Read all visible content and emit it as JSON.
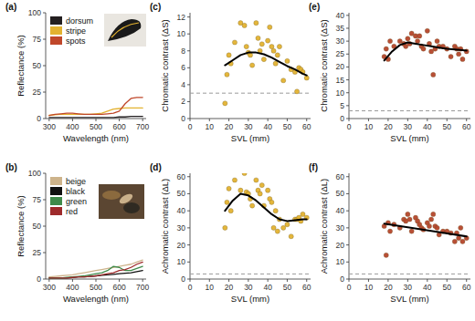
{
  "chart_data": [
    {
      "type": "line",
      "title": "(a)",
      "x_label": "Wavelength (nm)",
      "y_label": "Reflectance (%)",
      "x": [
        300,
        325,
        350,
        375,
        400,
        425,
        450,
        475,
        500,
        525,
        550,
        575,
        600,
        625,
        650,
        675,
        700
      ],
      "xlim": [
        285,
        715
      ],
      "xticks": [
        300,
        400,
        500,
        600,
        700
      ],
      "ylim": [
        0,
        100
      ],
      "yticks": [
        0,
        25,
        50,
        75,
        100
      ],
      "legend": "top-left",
      "series": [
        {
          "name": "dorsum",
          "color": "#231f20",
          "values": [
            1,
            1,
            1,
            1,
            1,
            1,
            1,
            1,
            1,
            1,
            1,
            1,
            1.5,
            1.5,
            2,
            2,
            2
          ]
        },
        {
          "name": "stripe",
          "color": "#e3b230",
          "values": [
            3,
            3.5,
            4,
            4,
            4,
            4,
            4,
            4,
            4.5,
            5,
            7,
            9,
            9.5,
            10,
            10,
            10,
            10
          ]
        },
        {
          "name": "spots",
          "color": "#c0472a",
          "values": [
            3,
            4,
            4.5,
            5,
            5,
            4.5,
            4,
            4,
            4,
            4,
            4.5,
            5,
            7,
            14,
            19,
            20,
            20
          ]
        }
      ]
    },
    {
      "type": "line",
      "title": "(b)",
      "x_label": "Wavelength (nm)",
      "y_label": "Reflectance (%)",
      "x": [
        300,
        325,
        350,
        375,
        400,
        425,
        450,
        475,
        500,
        525,
        550,
        575,
        600,
        625,
        650,
        675,
        700
      ],
      "xlim": [
        285,
        715
      ],
      "xticks": [
        300,
        400,
        500,
        600,
        700
      ],
      "ylim": [
        0,
        100
      ],
      "yticks": [
        0,
        25,
        50,
        75,
        100
      ],
      "legend": "top-left",
      "series": [
        {
          "name": "beige",
          "color": "#cdb38b",
          "values": [
            2,
            2.5,
            3,
            3.5,
            4,
            5,
            6,
            7,
            8,
            9,
            10,
            11,
            12,
            13,
            14,
            16,
            18
          ]
        },
        {
          "name": "black",
          "color": "#111111",
          "values": [
            1,
            1,
            1,
            1,
            1.5,
            2,
            2,
            2.5,
            3,
            3.5,
            4,
            4.5,
            5,
            5.5,
            6,
            7,
            8
          ]
        },
        {
          "name": "green",
          "color": "#3f8a4a",
          "values": [
            1,
            1,
            1,
            1.5,
            2,
            2.5,
            3,
            4,
            5,
            6,
            8,
            12,
            11,
            8,
            8,
            10,
            12
          ]
        },
        {
          "name": "red",
          "color": "#9e2a2b",
          "values": [
            1,
            1,
            1,
            1,
            1.5,
            2,
            2,
            2.5,
            3,
            4,
            5,
            6,
            8,
            9,
            11,
            14,
            16
          ]
        }
      ]
    },
    {
      "type": "scatter",
      "title": "(c)",
      "x_label": "SVL (mm)",
      "y_label": "Chromatic contrast (ΔS)",
      "xlim": [
        0,
        62
      ],
      "xticks": [
        0,
        10,
        20,
        30,
        40,
        50,
        60
      ],
      "ylim": [
        0,
        12.5
      ],
      "yticks": [
        0,
        2,
        4,
        6,
        8,
        10,
        12
      ],
      "threshold": 3,
      "series": [
        {
          "type": "scatter",
          "color": "#e3b230",
          "x": [
            18,
            19,
            20,
            21,
            23,
            26,
            28,
            29,
            30,
            31,
            32,
            34,
            35,
            36,
            37,
            38,
            40,
            41,
            42,
            43,
            44,
            45,
            46,
            48,
            50,
            52,
            54,
            55,
            56,
            57,
            58,
            60
          ],
          "values": [
            1.8,
            5.2,
            7.5,
            6.5,
            9,
            11.3,
            11,
            8.5,
            7.8,
            7.5,
            6.3,
            11.3,
            9.5,
            8,
            8.8,
            7,
            9.2,
            10.8,
            8.5,
            8,
            6.5,
            7.5,
            8.5,
            4.5,
            6.8,
            5.8,
            5.5,
            3.2,
            6,
            5.8,
            5.5,
            4.8
          ]
        },
        {
          "type": "line",
          "color": "#000000",
          "x": [
            18,
            22,
            26,
            30,
            34,
            38,
            42,
            46,
            50,
            54,
            58,
            60
          ],
          "values": [
            6.3,
            6.9,
            7.5,
            7.8,
            7.8,
            7.6,
            7.2,
            6.7,
            6.2,
            5.8,
            5.3,
            5.1
          ]
        }
      ]
    },
    {
      "type": "scatter",
      "title": "(d)",
      "x_label": "SVL (mm)",
      "y_label": "Achromatic contrast (ΔL)",
      "xlim": [
        0,
        62
      ],
      "xticks": [
        0,
        10,
        20,
        30,
        40,
        50,
        60
      ],
      "ylim": [
        0,
        62
      ],
      "yticks": [
        0,
        10,
        20,
        30,
        40,
        50,
        60
      ],
      "threshold": 3,
      "series": [
        {
          "type": "scatter",
          "color": "#e3b230",
          "x": [
            18,
            19,
            20,
            21,
            23,
            26,
            28,
            29,
            30,
            31,
            32,
            34,
            35,
            36,
            37,
            38,
            40,
            41,
            42,
            43,
            44,
            45,
            46,
            48,
            50,
            52,
            54,
            55,
            56,
            57,
            58,
            60
          ],
          "values": [
            30,
            45,
            53,
            40,
            58,
            52,
            62,
            51,
            50,
            47,
            43,
            58,
            52,
            50,
            55,
            43,
            52,
            47,
            45,
            30,
            40,
            28,
            35,
            30,
            32,
            25,
            35,
            35,
            36,
            34,
            38,
            36
          ]
        },
        {
          "type": "line",
          "color": "#000000",
          "x": [
            18,
            22,
            26,
            30,
            34,
            38,
            42,
            46,
            50,
            54,
            58,
            60
          ],
          "values": [
            40,
            46,
            50,
            49,
            46,
            42,
            38,
            35,
            34,
            34.5,
            35,
            35
          ]
        }
      ]
    },
    {
      "type": "scatter",
      "title": "(e)",
      "x_label": "SVL (mm)",
      "y_label": "Chromatic contrast (ΔS)",
      "xlim": [
        0,
        62
      ],
      "xticks": [
        0,
        10,
        20,
        30,
        40,
        50,
        60
      ],
      "ylim": [
        0,
        41
      ],
      "yticks": [
        0,
        5,
        10,
        15,
        20,
        25,
        30,
        35,
        40
      ],
      "threshold": 3,
      "series": [
        {
          "type": "scatter",
          "color": "#b5462b",
          "x": [
            18,
            19,
            20,
            21,
            23,
            26,
            28,
            29,
            30,
            31,
            32,
            34,
            35,
            36,
            37,
            38,
            40,
            41,
            42,
            43,
            44,
            45,
            46,
            48,
            50,
            52,
            54,
            55,
            56,
            57,
            58,
            60
          ],
          "values": [
            24,
            27,
            23,
            30,
            28,
            30,
            29,
            28,
            31,
            29,
            33,
            32,
            30,
            32,
            28,
            27,
            34,
            29,
            26,
            17,
            27,
            30,
            28,
            28,
            27,
            24,
            28,
            27,
            25,
            27,
            23,
            26
          ]
        },
        {
          "type": "line",
          "color": "#000000",
          "x": [
            18,
            22,
            26,
            30,
            34,
            38,
            42,
            46,
            50,
            54,
            58,
            60
          ],
          "values": [
            22.5,
            26,
            28.5,
            29.5,
            29,
            28.5,
            28,
            27.5,
            27,
            26.8,
            26.5,
            26.3
          ]
        }
      ]
    },
    {
      "type": "scatter",
      "title": "(f)",
      "x_label": "SVL (mm)",
      "y_label": "Achromatic contrast (ΔL)",
      "xlim": [
        0,
        62
      ],
      "xticks": [
        0,
        10,
        20,
        30,
        40,
        50,
        60
      ],
      "ylim": [
        0,
        62
      ],
      "yticks": [
        0,
        10,
        20,
        30,
        40,
        50,
        60
      ],
      "threshold": 3,
      "series": [
        {
          "type": "scatter",
          "color": "#b5462b",
          "x": [
            18,
            19,
            20,
            21,
            23,
            26,
            28,
            29,
            30,
            31,
            32,
            34,
            35,
            36,
            37,
            38,
            40,
            41,
            42,
            43,
            44,
            45,
            46,
            48,
            50,
            52,
            54,
            55,
            56,
            57,
            58,
            60
          ],
          "values": [
            31,
            14,
            33,
            28,
            32,
            30,
            35,
            34,
            38,
            35,
            28,
            36,
            34,
            32,
            30,
            29,
            33,
            31,
            35,
            38,
            31,
            30,
            26,
            28,
            28,
            27,
            22,
            27,
            24,
            30,
            22,
            24
          ]
        },
        {
          "type": "line",
          "color": "#000000",
          "x": [
            18,
            60
          ],
          "values": [
            32.5,
            25
          ]
        }
      ]
    }
  ]
}
